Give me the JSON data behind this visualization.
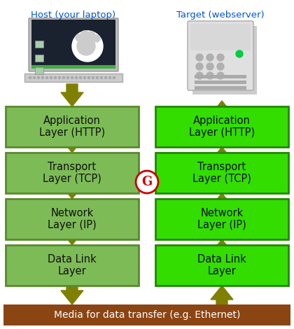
{
  "title_left": "Host (your laptop)",
  "title_right": "Target (webserver)",
  "layers_left": [
    "Application\nLayer (HTTP)",
    "Transport\nLayer (TCP)",
    "Network\nLayer (IP)",
    "Data Link\nLayer"
  ],
  "layers_right": [
    "Application\nLayer (HTTP)",
    "Transport\nLayer (TCP)",
    "Network\nLayer (IP)",
    "Data Link\nLayer"
  ],
  "bottom_bar_text": "Media for data transfer (e.g. Ethernet)",
  "box_color_left": "#7dbb57",
  "box_color_right": "#33dd00",
  "box_edge_color_left": "#5a8a2a",
  "box_edge_color_right": "#228800",
  "bottom_bar_color": "#8b4513",
  "bottom_bar_text_color": "#ffffff",
  "arrow_color": "#808000",
  "title_color": "#0055cc",
  "background_color": "#ffffff",
  "gnome_g_color": "#cc0000",
  "gnome_circle_color": "#cc0000"
}
